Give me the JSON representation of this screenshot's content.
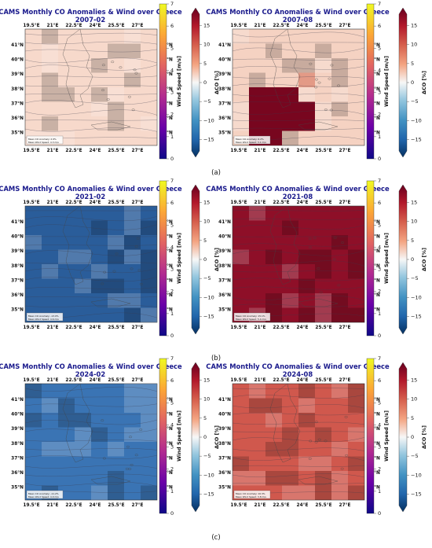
{
  "figure": {
    "panel_tags": [
      "(a)",
      "(b)",
      "(c)"
    ]
  },
  "axes": {
    "x_ticks": [
      "19.5°E",
      "21°E",
      "22.5°E",
      "24°E",
      "25.5°E",
      "27°E"
    ],
    "y_ticks": [
      "41°N",
      "40°N",
      "39°N",
      "38°N",
      "37°N",
      "36°N",
      "35°N"
    ]
  },
  "colorbars": {
    "wind": {
      "label": "Wind Speed [m/s]",
      "ticks": [
        "0",
        "1",
        "2",
        "3",
        "4",
        "5",
        "6",
        "7"
      ],
      "range": [
        0,
        7
      ],
      "colors": [
        "#0d0887",
        "#6a00a8",
        "#b12a90",
        "#e16462",
        "#fca636",
        "#f0f921"
      ]
    },
    "co": {
      "label": "ΔCO [%]",
      "ticks": [
        "15",
        "10",
        "5",
        "0",
        "−5",
        "−10",
        "−15"
      ],
      "range": [
        -18,
        18
      ],
      "colors": [
        "#053061",
        "#2166ac",
        "#4393c3",
        "#92c5de",
        "#f7f7f7",
        "#f4a582",
        "#d6604d",
        "#b2182b",
        "#67001f"
      ]
    }
  },
  "chart_data": [
    {
      "type": "heatmap",
      "title": "CAMS Monthly CO Anomalies & Wind over Greece",
      "subtitle": "2007-02",
      "panel": "(a)",
      "co_anomaly_pct": "≈ +3 uniform",
      "base_color": "#f7d9cb",
      "inset_lines": [
        "Mean CO Anomaly: 2.9%",
        "Mean Wind Speed: 4.3 m/s"
      ]
    },
    {
      "type": "heatmap",
      "title": "CAMS Monthly CO Anomalies & Wind over Greece",
      "subtitle": "2007-08",
      "panel": "(a)",
      "co_anomaly_pct": "≈ +5 background, up to ≈ +18 southwest",
      "base_color": "#f5d2c2",
      "hotspot_color": "#78061f",
      "inset_lines": [
        "Mean CO Anomaly: 6.2%",
        "Mean Wind Speed: 3.1 m/s"
      ]
    },
    {
      "type": "heatmap",
      "title": "CAMS Monthly CO Anomalies & Wind over Greece",
      "subtitle": "2021-02",
      "panel": "(b)",
      "co_anomaly_pct": "≈ −13 uniform",
      "base_color": "#2a5d9a",
      "inset_lines": [
        "Mean CO Anomaly: -13.0%",
        "Mean Wind Speed: 4.6 m/s"
      ]
    },
    {
      "type": "heatmap",
      "title": "CAMS Monthly CO Anomalies & Wind over Greece",
      "subtitle": "2021-08",
      "panel": "(b)",
      "co_anomaly_pct": "≈ +15 uniform",
      "base_color": "#8e0f28",
      "inset_lines": [
        "Mean CO Anomaly: 15.1%",
        "Mean Wind Speed: 5.4 m/s"
      ]
    },
    {
      "type": "heatmap",
      "title": "CAMS Monthly CO Anomalies & Wind over Greece",
      "subtitle": "2024-02",
      "panel": "(c)",
      "co_anomaly_pct": "≈ −11 uniform",
      "base_color": "#3a74b4",
      "inset_lines": [
        "Mean CO Anomaly: -11.2%",
        "Mean Wind Speed: 4.0 m/s"
      ]
    },
    {
      "type": "heatmap",
      "title": "CAMS Monthly CO Anomalies & Wind over Greece",
      "subtitle": "2024-08",
      "panel": "(c)",
      "co_anomaly_pct": "≈ +10 uniform",
      "base_color": "#d0584d",
      "inset_lines": [
        "Mean CO Anomaly: 10.3%",
        "Mean Wind Speed: 3.8 m/s"
      ]
    }
  ]
}
